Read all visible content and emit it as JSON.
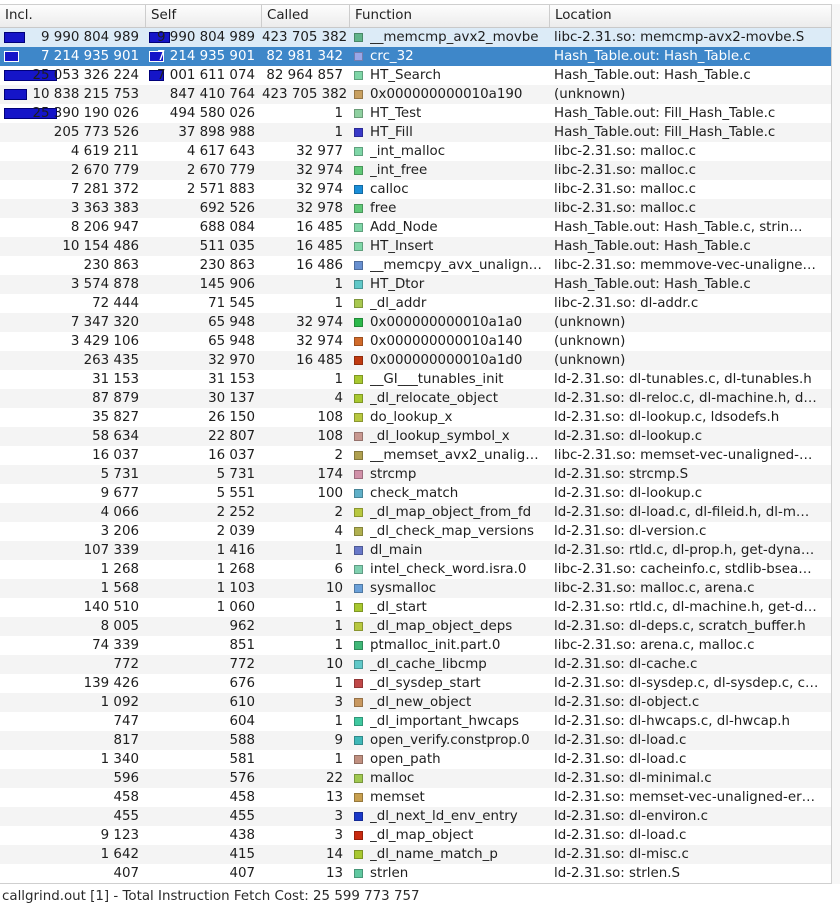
{
  "columns": {
    "incl": "Incl.",
    "self": "Self",
    "called": "Called",
    "function": "Function",
    "location": "Location"
  },
  "status": "callgrind.out [1] - Total Instruction Fetch Cost: 25 599 773 757",
  "rows": [
    {
      "incl": "9 990 804 989",
      "self": "9 990 804 989",
      "called": "423 705 382",
      "func": "__memcmp_avx2_movbe",
      "loc": "libc-2.31.so: memcmp-avx2-movbe.S",
      "color": "#60b48a",
      "incl_frac": 0.39,
      "self_frac": 0.39
    },
    {
      "incl": "7 214 935 901",
      "self": "7 214 935 901",
      "called": "82 981 342",
      "func": "crc_32",
      "loc": "Hash_Table.out: Hash_Table.c",
      "color": "#9aa7e8",
      "incl_frac": 0.28,
      "self_frac": 0.28
    },
    {
      "incl": "25 053 326 224",
      "self": "7 001 611 074",
      "called": "82 964 857",
      "func": "HT_Search",
      "loc": "Hash_Table.out: Hash_Table.c",
      "color": "#7fd6a7",
      "incl_frac": 0.98,
      "self_frac": 0.27
    },
    {
      "incl": "10 838 215 753",
      "self": "847 410 764",
      "called": "423 705 382",
      "func": "0x000000000010a190",
      "loc": "(unknown)",
      "color": "#c8a060",
      "incl_frac": 0.42,
      "self_frac": 0
    },
    {
      "incl": "25 390 190 026",
      "self": "494 580 026",
      "called": "1",
      "func": "HT_Test",
      "loc": "Hash_Table.out: Fill_Hash_Table.c",
      "color": "#8fd0a0",
      "incl_frac": 0.99,
      "self_frac": 0
    },
    {
      "incl": "205 773 526",
      "self": "37 898 988",
      "called": "1",
      "func": "HT_Fill",
      "loc": "Hash_Table.out: Fill_Hash_Table.c",
      "color": "#3a3ac8",
      "incl_frac": 0,
      "self_frac": 0
    },
    {
      "incl": "4 619 211",
      "self": "4 617 643",
      "called": "32 977",
      "func": "_int_malloc",
      "loc": "libc-2.31.so: malloc.c",
      "color": "#7fd6a7",
      "incl_frac": 0,
      "self_frac": 0
    },
    {
      "incl": "2 670 779",
      "self": "2 670 779",
      "called": "32 974",
      "func": "_int_free",
      "loc": "libc-2.31.so: malloc.c",
      "color": "#60c878",
      "incl_frac": 0,
      "self_frac": 0
    },
    {
      "incl": "7 281 372",
      "self": "2 571 883",
      "called": "32 974",
      "func": "calloc",
      "loc": "libc-2.31.so: malloc.c",
      "color": "#1a8ed8",
      "incl_frac": 0,
      "self_frac": 0
    },
    {
      "incl": "3 363 383",
      "self": "692 526",
      "called": "32 978",
      "func": "free",
      "loc": "libc-2.31.so: malloc.c",
      "color": "#60c878",
      "incl_frac": 0,
      "self_frac": 0
    },
    {
      "incl": "8 206 947",
      "self": "688 084",
      "called": "16 485",
      "func": "Add_Node",
      "loc": "Hash_Table.out: Hash_Table.c, strin…",
      "color": "#7fd6a7",
      "incl_frac": 0,
      "self_frac": 0
    },
    {
      "incl": "10 154 486",
      "self": "511 035",
      "called": "16 485",
      "func": "HT_Insert",
      "loc": "Hash_Table.out: Hash_Table.c",
      "color": "#7fd6a7",
      "incl_frac": 0,
      "self_frac": 0
    },
    {
      "incl": "230 863",
      "self": "230 863",
      "called": "16 486",
      "func": "__memcpy_avx_unalign…",
      "loc": "libc-2.31.so: memmove-vec-unaligne…",
      "color": "#6890d0",
      "incl_frac": 0,
      "self_frac": 0
    },
    {
      "incl": "3 574 878",
      "self": "145 906",
      "called": "1",
      "func": "HT_Dtor",
      "loc": "Hash_Table.out: Hash_Table.c",
      "color": "#60c8c8",
      "incl_frac": 0,
      "self_frac": 0
    },
    {
      "incl": "72 444",
      "self": "71 545",
      "called": "1",
      "func": "_dl_addr",
      "loc": "libc-2.31.so: dl-addr.c",
      "color": "#a8c850",
      "incl_frac": 0,
      "self_frac": 0
    },
    {
      "incl": "7 347 320",
      "self": "65 948",
      "called": "32 974",
      "func": "0x000000000010a1a0",
      "loc": "(unknown)",
      "color": "#2cb84a",
      "incl_frac": 0,
      "self_frac": 0
    },
    {
      "incl": "3 429 106",
      "self": "65 948",
      "called": "32 974",
      "func": "0x000000000010a140",
      "loc": "(unknown)",
      "color": "#d06a2a",
      "incl_frac": 0,
      "self_frac": 0
    },
    {
      "incl": "263 435",
      "self": "32 970",
      "called": "16 485",
      "func": "0x000000000010a1d0",
      "loc": "(unknown)",
      "color": "#c03a10",
      "incl_frac": 0,
      "self_frac": 0
    },
    {
      "incl": "31 153",
      "self": "31 153",
      "called": "1",
      "func": "__GI___tunables_init",
      "loc": "ld-2.31.so: dl-tunables.c, dl-tunables.h",
      "color": "#a8c830",
      "incl_frac": 0,
      "self_frac": 0
    },
    {
      "incl": "87 879",
      "self": "30 137",
      "called": "4",
      "func": "_dl_relocate_object",
      "loc": "ld-2.31.so: dl-reloc.c, dl-machine.h, d…",
      "color": "#a8c830",
      "incl_frac": 0,
      "self_frac": 0
    },
    {
      "incl": "35 827",
      "self": "26 150",
      "called": "108",
      "func": "do_lookup_x",
      "loc": "ld-2.31.so: dl-lookup.c, ldsodefs.h",
      "color": "#b8c840",
      "incl_frac": 0,
      "self_frac": 0
    },
    {
      "incl": "58 634",
      "self": "22 807",
      "called": "108",
      "func": "_dl_lookup_symbol_x",
      "loc": "ld-2.31.so: dl-lookup.c",
      "color": "#c89890",
      "incl_frac": 0,
      "self_frac": 0
    },
    {
      "incl": "16 037",
      "self": "16 037",
      "called": "2",
      "func": "__memset_avx2_unalig…",
      "loc": "libc-2.31.so: memset-vec-unaligned-…",
      "color": "#b0a050",
      "incl_frac": 0,
      "self_frac": 0
    },
    {
      "incl": "5 731",
      "self": "5 731",
      "called": "174",
      "func": "strcmp",
      "loc": "ld-2.31.so: strcmp.S",
      "color": "#d090a8",
      "incl_frac": 0,
      "self_frac": 0
    },
    {
      "incl": "9 677",
      "self": "5 551",
      "called": "100",
      "func": "check_match",
      "loc": "ld-2.31.so: dl-lookup.c",
      "color": "#60b0c8",
      "incl_frac": 0,
      "self_frac": 0
    },
    {
      "incl": "4 066",
      "self": "2 252",
      "called": "2",
      "func": "_dl_map_object_from_fd",
      "loc": "ld-2.31.so: dl-load.c, dl-fileid.h, dl-m…",
      "color": "#b8c840",
      "incl_frac": 0,
      "self_frac": 0
    },
    {
      "incl": "3 206",
      "self": "2 039",
      "called": "4",
      "func": "_dl_check_map_versions",
      "loc": "ld-2.31.so: dl-version.c",
      "color": "#b0b050",
      "incl_frac": 0,
      "self_frac": 0
    },
    {
      "incl": "107 339",
      "self": "1 416",
      "called": "1",
      "func": "dl_main",
      "loc": "ld-2.31.so: rtld.c, dl-prop.h, get-dyna…",
      "color": "#6878c8",
      "incl_frac": 0,
      "self_frac": 0
    },
    {
      "incl": "1 268",
      "self": "1 268",
      "called": "6",
      "func": "intel_check_word.isra.0",
      "loc": "libc-2.31.so: cacheinfo.c, stdlib-bsea…",
      "color": "#80d0b0",
      "incl_frac": 0,
      "self_frac": 0
    },
    {
      "incl": "1 568",
      "self": "1 103",
      "called": "10",
      "func": "sysmalloc",
      "loc": "libc-2.31.so: malloc.c, arena.c",
      "color": "#6aa0d8",
      "incl_frac": 0,
      "self_frac": 0
    },
    {
      "incl": "140 510",
      "self": "1 060",
      "called": "1",
      "func": "_dl_start",
      "loc": "ld-2.31.so: rtld.c, dl-machine.h, get-d…",
      "color": "#a8c830",
      "incl_frac": 0,
      "self_frac": 0
    },
    {
      "incl": "8 005",
      "self": "962",
      "called": "1",
      "func": "_dl_map_object_deps",
      "loc": "ld-2.31.so: dl-deps.c, scratch_buffer.h",
      "color": "#b8c840",
      "incl_frac": 0,
      "self_frac": 0
    },
    {
      "incl": "74 339",
      "self": "851",
      "called": "1",
      "func": "ptmalloc_init.part.0",
      "loc": "libc-2.31.so: arena.c, malloc.c",
      "color": "#40b878",
      "incl_frac": 0,
      "self_frac": 0
    },
    {
      "incl": "772",
      "self": "772",
      "called": "10",
      "func": "_dl_cache_libcmp",
      "loc": "ld-2.31.so: dl-cache.c",
      "color": "#60c8c8",
      "incl_frac": 0,
      "self_frac": 0
    },
    {
      "incl": "139 426",
      "self": "676",
      "called": "1",
      "func": "_dl_sysdep_start",
      "loc": "ld-2.31.so: dl-sysdep.c, dl-sysdep.c, c…",
      "color": "#c04848",
      "incl_frac": 0,
      "self_frac": 0
    },
    {
      "incl": "1 092",
      "self": "610",
      "called": "3",
      "func": "_dl_new_object",
      "loc": "ld-2.31.so: dl-object.c",
      "color": "#c89860",
      "incl_frac": 0,
      "self_frac": 0
    },
    {
      "incl": "747",
      "self": "604",
      "called": "1",
      "func": "_dl_important_hwcaps",
      "loc": "ld-2.31.so: dl-hwcaps.c, dl-hwcap.h",
      "color": "#40c8a0",
      "incl_frac": 0,
      "self_frac": 0
    },
    {
      "incl": "817",
      "self": "588",
      "called": "9",
      "func": "open_verify.constprop.0",
      "loc": "ld-2.31.so: dl-load.c",
      "color": "#40b8b8",
      "incl_frac": 0,
      "self_frac": 0
    },
    {
      "incl": "1 340",
      "self": "581",
      "called": "1",
      "func": "open_path",
      "loc": "ld-2.31.so: dl-load.c",
      "color": "#c09080",
      "incl_frac": 0,
      "self_frac": 0
    },
    {
      "incl": "596",
      "self": "576",
      "called": "22",
      "func": "malloc",
      "loc": "ld-2.31.so: dl-minimal.c",
      "color": "#a0c850",
      "incl_frac": 0,
      "self_frac": 0
    },
    {
      "incl": "458",
      "self": "458",
      "called": "13",
      "func": "memset",
      "loc": "ld-2.31.so: memset-vec-unaligned-er…",
      "color": "#c8a050",
      "incl_frac": 0,
      "self_frac": 0
    },
    {
      "incl": "455",
      "self": "455",
      "called": "3",
      "func": "_dl_next_ld_env_entry",
      "loc": "ld-2.31.so: dl-environ.c",
      "color": "#1a38c8",
      "incl_frac": 0,
      "self_frac": 0
    },
    {
      "incl": "9 123",
      "self": "438",
      "called": "3",
      "func": "_dl_map_object",
      "loc": "ld-2.31.so: dl-load.c",
      "color": "#c82a10",
      "incl_frac": 0,
      "self_frac": 0
    },
    {
      "incl": "1 642",
      "self": "415",
      "called": "14",
      "func": "_dl_name_match_p",
      "loc": "ld-2.31.so: dl-misc.c",
      "color": "#a8c830",
      "incl_frac": 0,
      "self_frac": 0
    },
    {
      "incl": "407",
      "self": "407",
      "called": "13",
      "func": "strlen",
      "loc": "ld-2.31.so: strlen.S",
      "color": "#60c8a0",
      "incl_frac": 0,
      "self_frac": 0
    }
  ]
}
